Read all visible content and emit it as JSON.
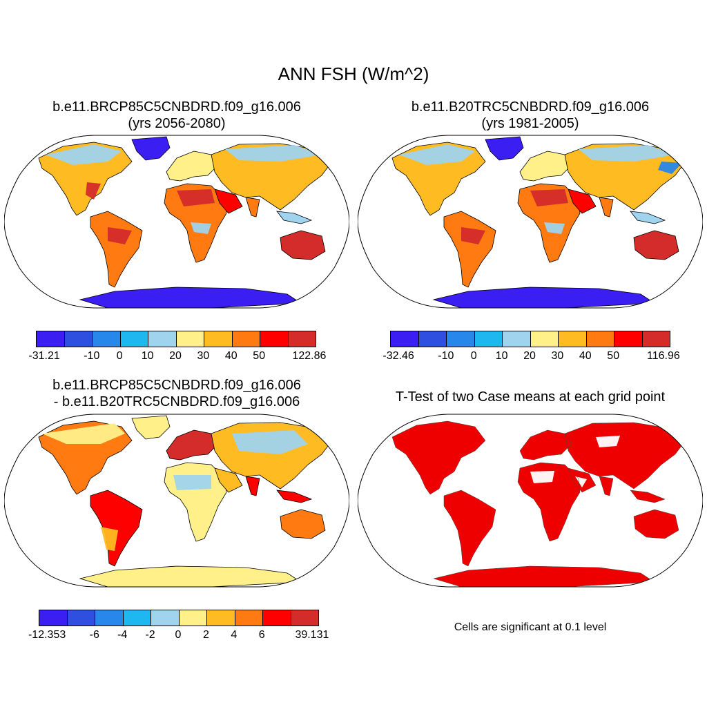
{
  "main_title": "ANN FSH (W/m^2)",
  "panels": {
    "p1": {
      "line1": "b.e11.BRCP85C5CNBDRD.f09_g16.006",
      "line2": "(yrs 2056-2080)"
    },
    "p2": {
      "line1": "b.e11.B20TRC5CNBDRD.f09_g16.006",
      "line2": "(yrs 1981-2005)"
    },
    "p3": {
      "line1": "b.e11.BRCP85C5CNBDRD.f09_g16.006",
      "line2": "- b.e11.B20TRC5CNBDRD.f09_g16.006"
    },
    "p4": {
      "line1": "T-Test of two Case means at each grid point",
      "note": "Cells are significant at 0.1 level"
    }
  },
  "colorbars": {
    "cb1": {
      "labels": [
        "-31.21",
        "-10",
        "0",
        "10",
        "20",
        "30",
        "40",
        "50",
        "122.86"
      ]
    },
    "cb2": {
      "labels": [
        "-32.46",
        "-10",
        "0",
        "10",
        "20",
        "30",
        "40",
        "50",
        "116.96"
      ]
    },
    "cb3": {
      "labels": [
        "-12.353",
        "-6",
        "-4",
        "-2",
        "0",
        "2",
        "4",
        "6",
        "39.131"
      ]
    }
  },
  "colors": {
    "scale": [
      "#3a1ef2",
      "#2f4fe0",
      "#2787ea",
      "#1fb7f0",
      "#9fd3ee",
      "#fff08a",
      "#ffbb22",
      "#ff7a10",
      "#ff0000",
      "#d42b2b"
    ],
    "significant": "#ee0000"
  }
}
